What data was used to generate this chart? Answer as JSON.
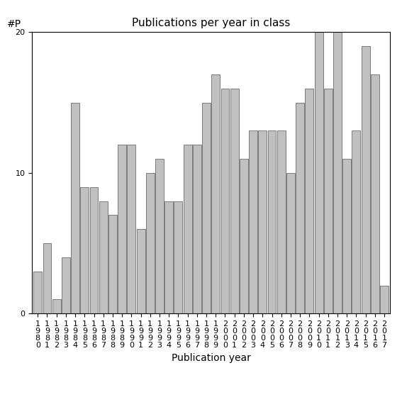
{
  "title": "Publications per year in class",
  "xlabel": "Publication year",
  "ylabel": "#P",
  "bar_color": "#c0c0c0",
  "bar_edgecolor": "#555555",
  "years": [
    1980,
    1981,
    1982,
    1983,
    1984,
    1985,
    1986,
    1987,
    1988,
    1989,
    1990,
    1991,
    1992,
    1993,
    1994,
    1995,
    1996,
    1997,
    1998,
    1999,
    2000,
    2001,
    2002,
    2003,
    2004,
    2005,
    2006,
    2007,
    2008,
    2009,
    2010,
    2011,
    2012,
    2013,
    2014,
    2015,
    2016,
    2017
  ],
  "values": [
    3,
    5,
    1,
    4,
    15,
    9,
    9,
    8,
    7,
    12,
    12,
    6,
    10,
    11,
    8,
    8,
    12,
    12,
    15,
    17,
    16,
    16,
    11,
    13,
    13,
    13,
    13,
    10,
    15,
    16,
    20,
    16,
    20,
    11,
    13,
    19,
    17,
    2
  ],
  "ylim": [
    0,
    20
  ],
  "yticks": [
    0,
    10,
    20
  ],
  "background_color": "#ffffff",
  "title_fontsize": 11,
  "axis_label_fontsize": 10,
  "tick_fontsize": 8
}
